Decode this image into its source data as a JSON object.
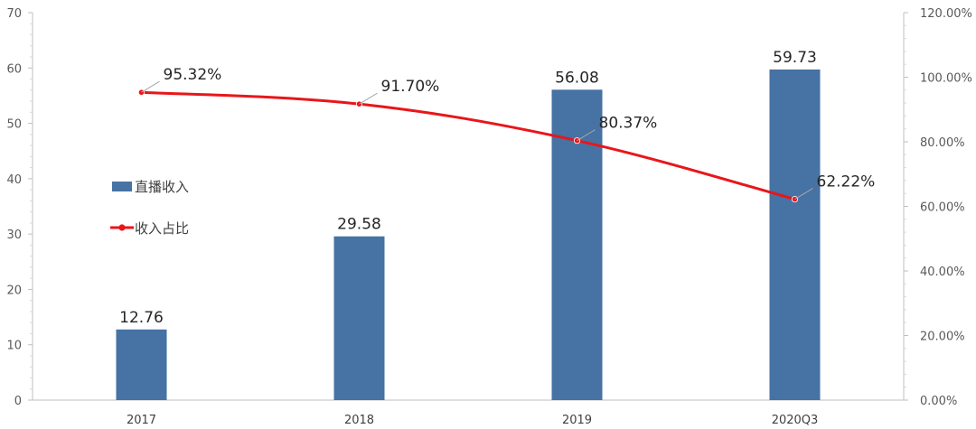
{
  "chart_data": {
    "type": "bar",
    "categories": [
      "2017",
      "2018",
      "2019",
      "2020Q3"
    ],
    "series": [
      {
        "name": "直播收入",
        "type": "bar",
        "axis": "left",
        "color": "#4672A4",
        "values": [
          12.76,
          29.58,
          56.08,
          59.73
        ],
        "labels": [
          "12.76",
          "29.58",
          "56.08",
          "59.73"
        ]
      },
      {
        "name": "收入占比",
        "type": "line",
        "axis": "right",
        "color": "#E8161A",
        "values": [
          95.32,
          91.7,
          80.37,
          62.22
        ],
        "labels": [
          "95.32%",
          "91.70%",
          "80.37%",
          "62.22%"
        ]
      }
    ],
    "y_left": {
      "min": 0,
      "max": 70,
      "ticks": [
        "0",
        "10",
        "20",
        "30",
        "40",
        "50",
        "60",
        "70"
      ]
    },
    "y_right": {
      "min": 0,
      "max": 120,
      "ticks": [
        "0.00%",
        "20.00%",
        "40.00%",
        "60.00%",
        "80.00%",
        "100.00%",
        "120.00%"
      ]
    },
    "grid": false,
    "legend": "left"
  }
}
